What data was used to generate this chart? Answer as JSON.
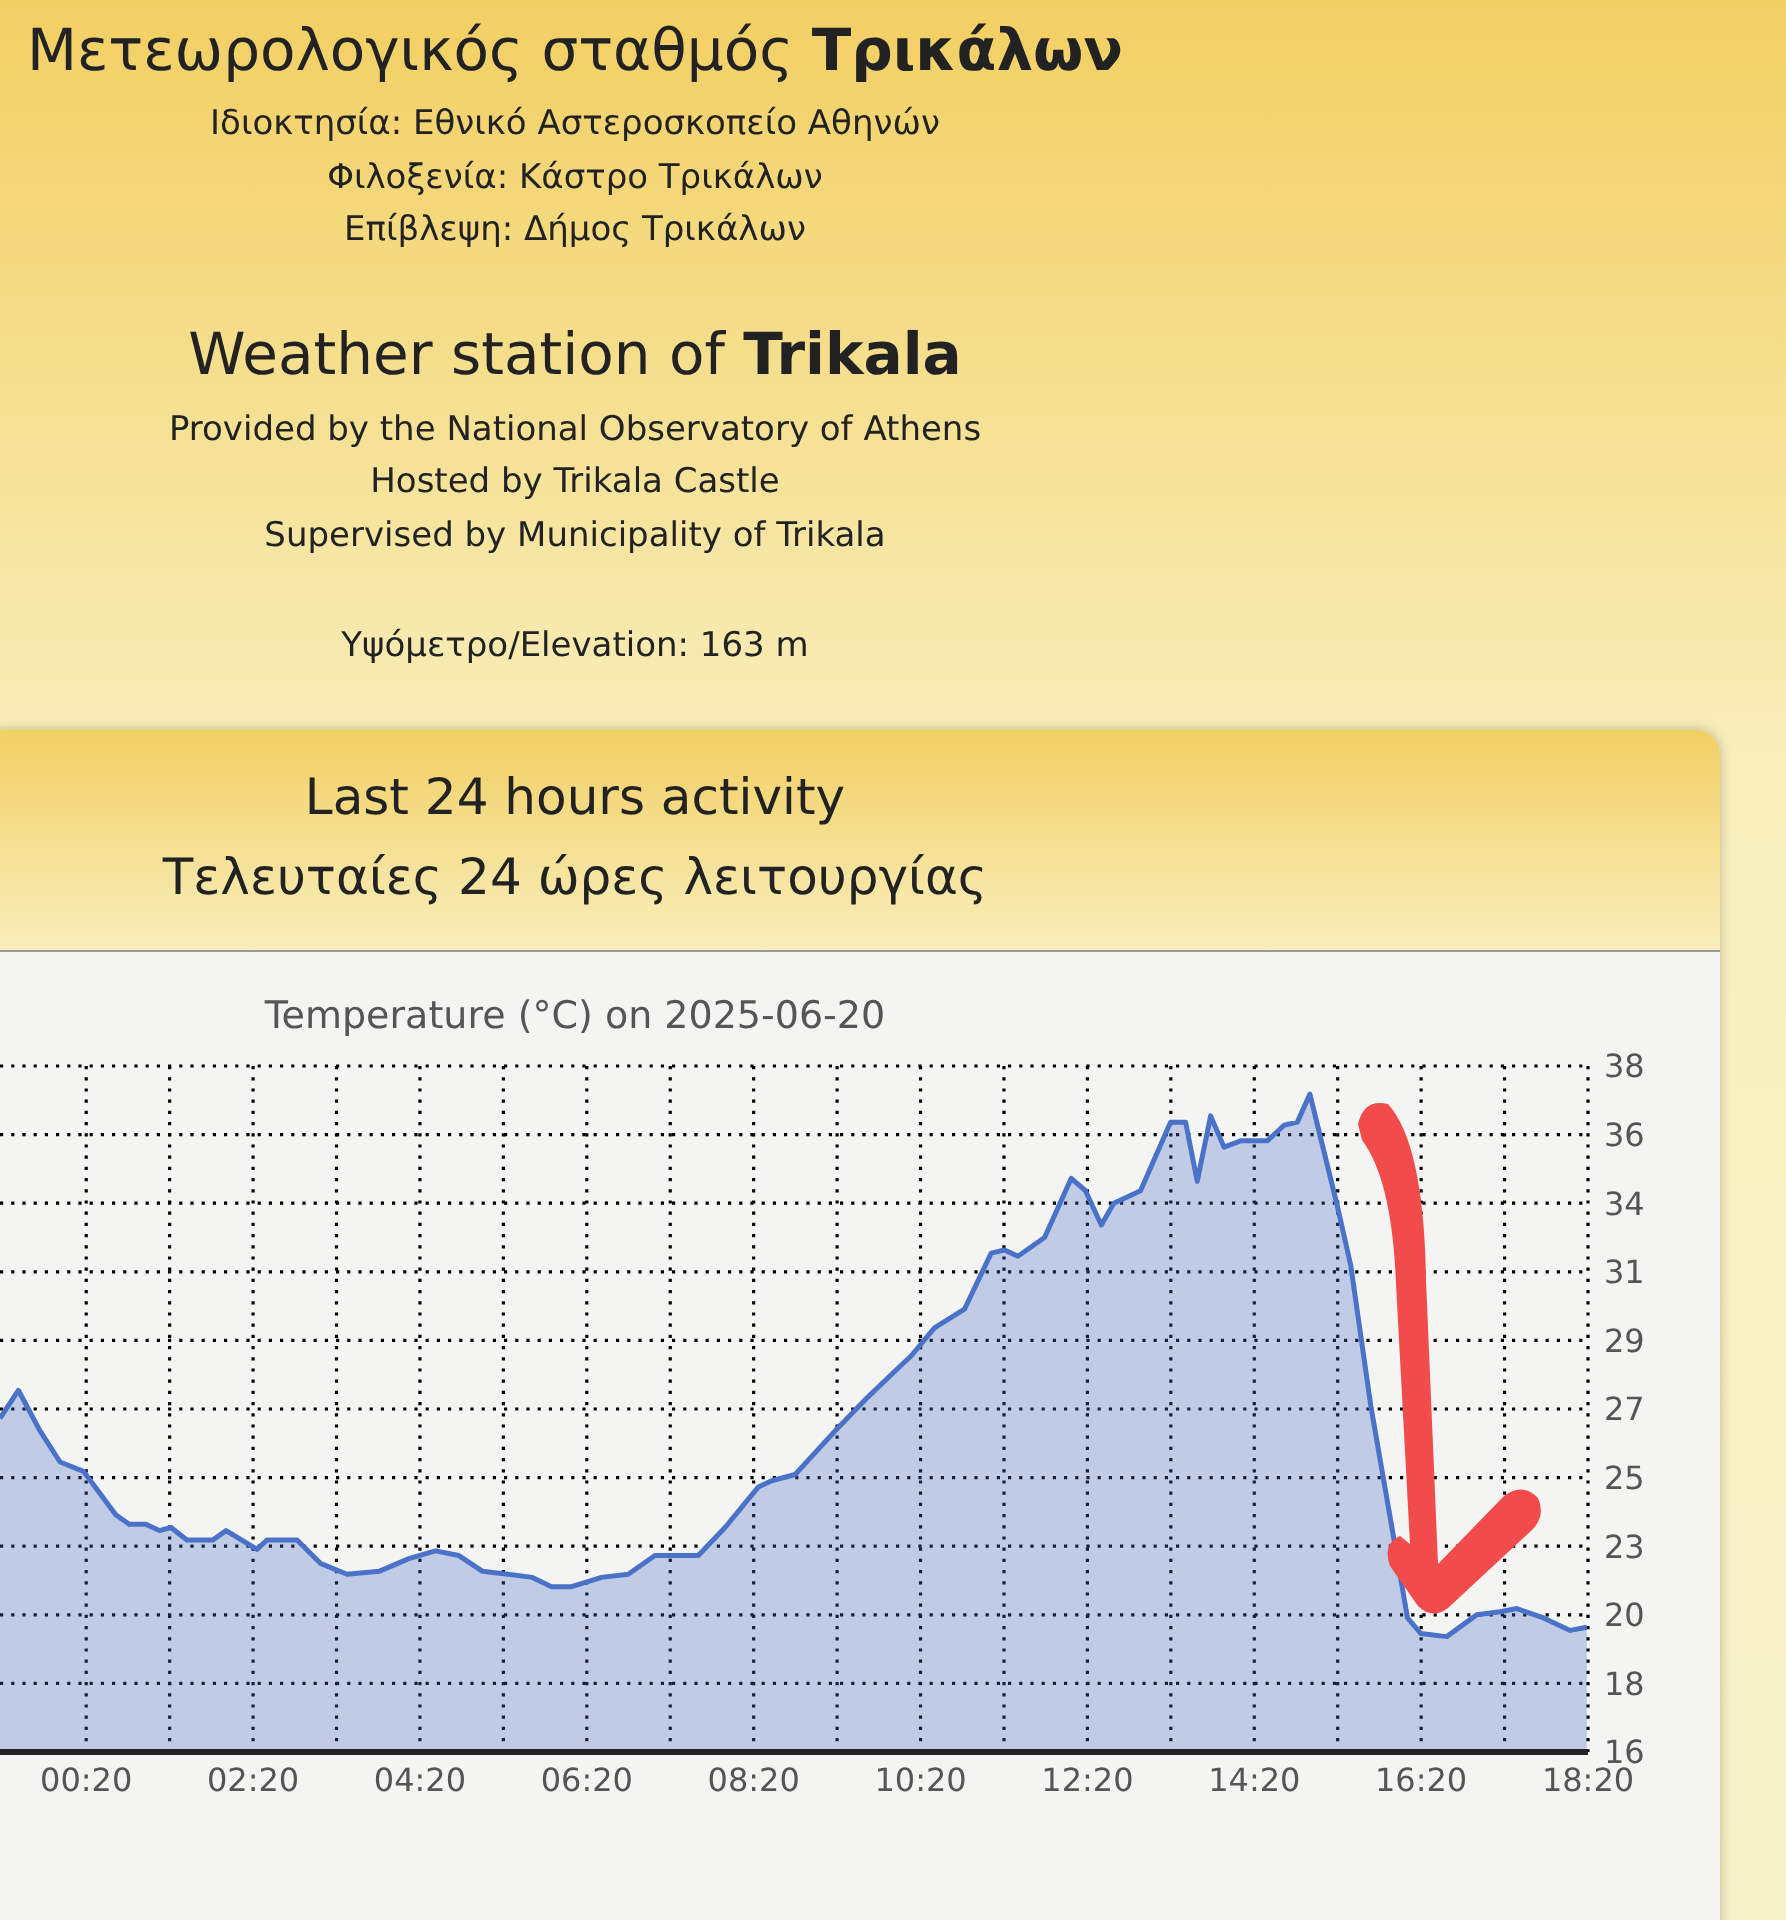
{
  "chart_data": {
    "type": "area",
    "title": "Temperature (°C) on 2025-06-20",
    "annotations": [
      "Μετεωρολογικός σταθμός Τρικάλων",
      "Ιδιοκτησία: Εθνικό Αστεροσκοπείο Αθηνών",
      "Φιλοξενία: Κάστρο Τρικάλων",
      "Επίβλεψη: Δήμος Τρικάλων",
      "Weather station of Trikala",
      "Provided by the National Observatory of Athens",
      "Hosted by Trikala Castle",
      "Supervised by Municipality of Trikala",
      "Υψόμετρο/Elevation: 163 m",
      "Last 24 hours activity",
      "Τελευταίες 24 ώρες λειτουργίας"
    ],
    "x": [
      -0.7,
      -0.48,
      -0.22,
      0.02,
      0.3,
      0.69,
      0.85,
      1.05,
      1.21,
      1.35,
      1.54,
      1.85,
      2.01,
      2.38,
      2.5,
      2.86,
      3.14,
      3.46,
      3.85,
      4.2,
      4.52,
      4.8,
      5.08,
      5.68,
      5.91,
      6.15,
      6.51,
      6.83,
      7.15,
      7.67,
      7.99,
      8.39,
      8.55,
      8.83,
      9.31,
      9.67,
      10.06,
      10.22,
      10.5,
      10.86,
      11.18,
      11.34,
      11.5,
      11.82,
      12.14,
      12.31,
      12.5,
      12.65,
      12.97,
      13.33,
      13.51,
      13.65,
      13.81,
      13.97,
      14.17,
      14.49,
      14.69,
      14.85,
      15.0,
      15.33,
      15.49,
      15.73,
      15.97,
      16.17,
      16.33,
      16.64,
      17.0,
      17.28,
      17.48,
      17.8,
      18.12,
      18.32
    ],
    "series": [
      {
        "color": "#4a72c8",
        "values": [
          26.7,
          27.6,
          26.3,
          25.3,
          25.0,
          23.6,
          23.3,
          23.3,
          23.1,
          23.2,
          22.8,
          22.8,
          23.1,
          22.5,
          22.8,
          22.8,
          22.05,
          21.7,
          21.8,
          22.2,
          22.45,
          22.3,
          21.8,
          21.6,
          21.3,
          21.3,
          21.6,
          21.7,
          22.3,
          22.3,
          23.2,
          24.5,
          24.7,
          24.9,
          26.3,
          27.3,
          28.3,
          28.7,
          29.6,
          30.2,
          32.0,
          32.1,
          31.9,
          32.5,
          34.4,
          34.0,
          32.9,
          33.6,
          34.0,
          36.2,
          36.2,
          34.3,
          36.4,
          35.4,
          35.6,
          35.6,
          36.1,
          36.2,
          37.1,
          33.5,
          31.6,
          27.1,
          23.4,
          20.3,
          19.8,
          19.7,
          20.4,
          20.5,
          20.6,
          20.3,
          19.9,
          20.0
        ]
      }
    ],
    "xlim": [
      -0.7,
      18.3333
    ],
    "xticks": [
      {
        "value": 0.3333,
        "label": "00:20"
      },
      {
        "value": 1.3333,
        "label": null
      },
      {
        "value": 2.3333,
        "label": "02:20"
      },
      {
        "value": 3.3333,
        "label": null
      },
      {
        "value": 4.3333,
        "label": "04:20"
      },
      {
        "value": 5.3333,
        "label": null
      },
      {
        "value": 6.3333,
        "label": "06:20"
      },
      {
        "value": 7.3333,
        "label": null
      },
      {
        "value": 8.3333,
        "label": "08:20"
      },
      {
        "value": 9.3333,
        "label": null
      },
      {
        "value": 10.3333,
        "label": "10:20"
      },
      {
        "value": 11.3333,
        "label": null
      },
      {
        "value": 12.3333,
        "label": "12:20"
      },
      {
        "value": 13.3333,
        "label": null
      },
      {
        "value": 14.3333,
        "label": "14:20"
      },
      {
        "value": 15.3333,
        "label": null
      },
      {
        "value": 16.3333,
        "label": "16:20"
      },
      {
        "value": 17.3333,
        "label": null
      },
      {
        "value": 18.3333,
        "label": "18:20"
      }
    ],
    "ylim": [
      16,
      38
    ],
    "yticks": [
      16,
      {
        "value": 18.2,
        "label": "18"
      },
      {
        "value": 20.4,
        "label": "20"
      },
      {
        "value": 22.6,
        "label": "23"
      },
      {
        "value": 24.8,
        "label": "25"
      },
      27,
      {
        "value": 29.2,
        "label": "29"
      },
      {
        "value": 31.4,
        "label": "31"
      },
      {
        "value": 33.6,
        "label": "34"
      },
      {
        "value": 35.8,
        "label": "36"
      },
      38
    ],
    "grid": true,
    "legend": false,
    "marker": "none",
    "line_style": "solid"
  }
}
